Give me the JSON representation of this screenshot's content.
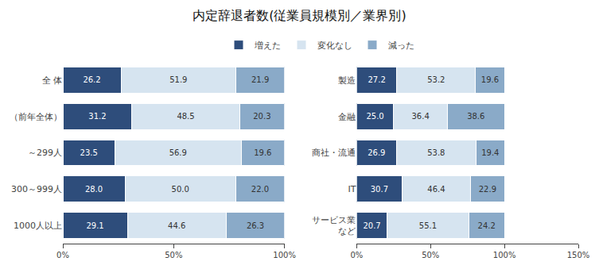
{
  "chart_data": [
    {
      "type": "bar",
      "title": "内定辞退者数(従業員規模別／業界別)",
      "orientation": "horizontal",
      "stacked": true,
      "data_labels": true,
      "grid": false,
      "legend": "top",
      "categories": [
        "全 体",
        "（前年全体）",
        "～299人",
        "300～999人",
        "1000人以上"
      ],
      "series": [
        {
          "name": "増えた",
          "color": "#2e4d7b",
          "values": [
            26.2,
            31.2,
            23.5,
            28.0,
            29.1
          ],
          "value_labels": [
            "26.2",
            "31.2",
            "23.5",
            "28.0",
            "29.1"
          ]
        },
        {
          "name": "変化なし",
          "color": "#d6e4f0",
          "values": [
            51.9,
            48.5,
            56.9,
            50.0,
            44.6
          ],
          "value_labels": [
            "51.9",
            "48.5",
            "56.9",
            "50.0",
            "44.6"
          ]
        },
        {
          "name": "減った",
          "color": "#8aaac8",
          "values": [
            21.9,
            20.3,
            19.6,
            22.0,
            26.3
          ],
          "value_labels": [
            "21.9",
            "20.3",
            "19.6",
            "22.0",
            "26.3"
          ]
        }
      ],
      "xlim": [
        0,
        100
      ],
      "xticks": [
        {
          "value": 0,
          "label": "0%"
        },
        {
          "value": 50,
          "label": "50%"
        },
        {
          "value": 100,
          "label": "100%"
        }
      ]
    },
    {
      "type": "bar",
      "orientation": "horizontal",
      "stacked": true,
      "data_labels": true,
      "grid": false,
      "legend": "top",
      "categories": [
        "製造",
        "金融",
        "商社・流通",
        "IT",
        "サービス業\nなど"
      ],
      "series": [
        {
          "name": "増えた",
          "color": "#2e4d7b",
          "values": [
            27.2,
            25.0,
            26.9,
            30.7,
            20.7
          ],
          "value_labels": [
            "27.2",
            "25.0",
            "26.9",
            "30.7",
            "20.7"
          ]
        },
        {
          "name": "変化なし",
          "color": "#d6e4f0",
          "values": [
            53.2,
            36.4,
            53.8,
            46.4,
            55.1
          ],
          "value_labels": [
            "53.2",
            "36.4",
            "53.8",
            "46.4",
            "55.1"
          ]
        },
        {
          "name": "減った",
          "color": "#8aaac8",
          "values": [
            19.6,
            38.6,
            19.4,
            22.9,
            24.2
          ],
          "value_labels": [
            "19.6",
            "38.6",
            "19.4",
            "22.9",
            "24.2"
          ]
        }
      ],
      "xlim": [
        0,
        150
      ],
      "xticks": [
        {
          "value": 0,
          "label": "0%"
        },
        {
          "value": 50,
          "label": "50%"
        },
        {
          "value": 100,
          "label": "100%"
        },
        {
          "value": 150,
          "label": "150%"
        }
      ]
    }
  ]
}
